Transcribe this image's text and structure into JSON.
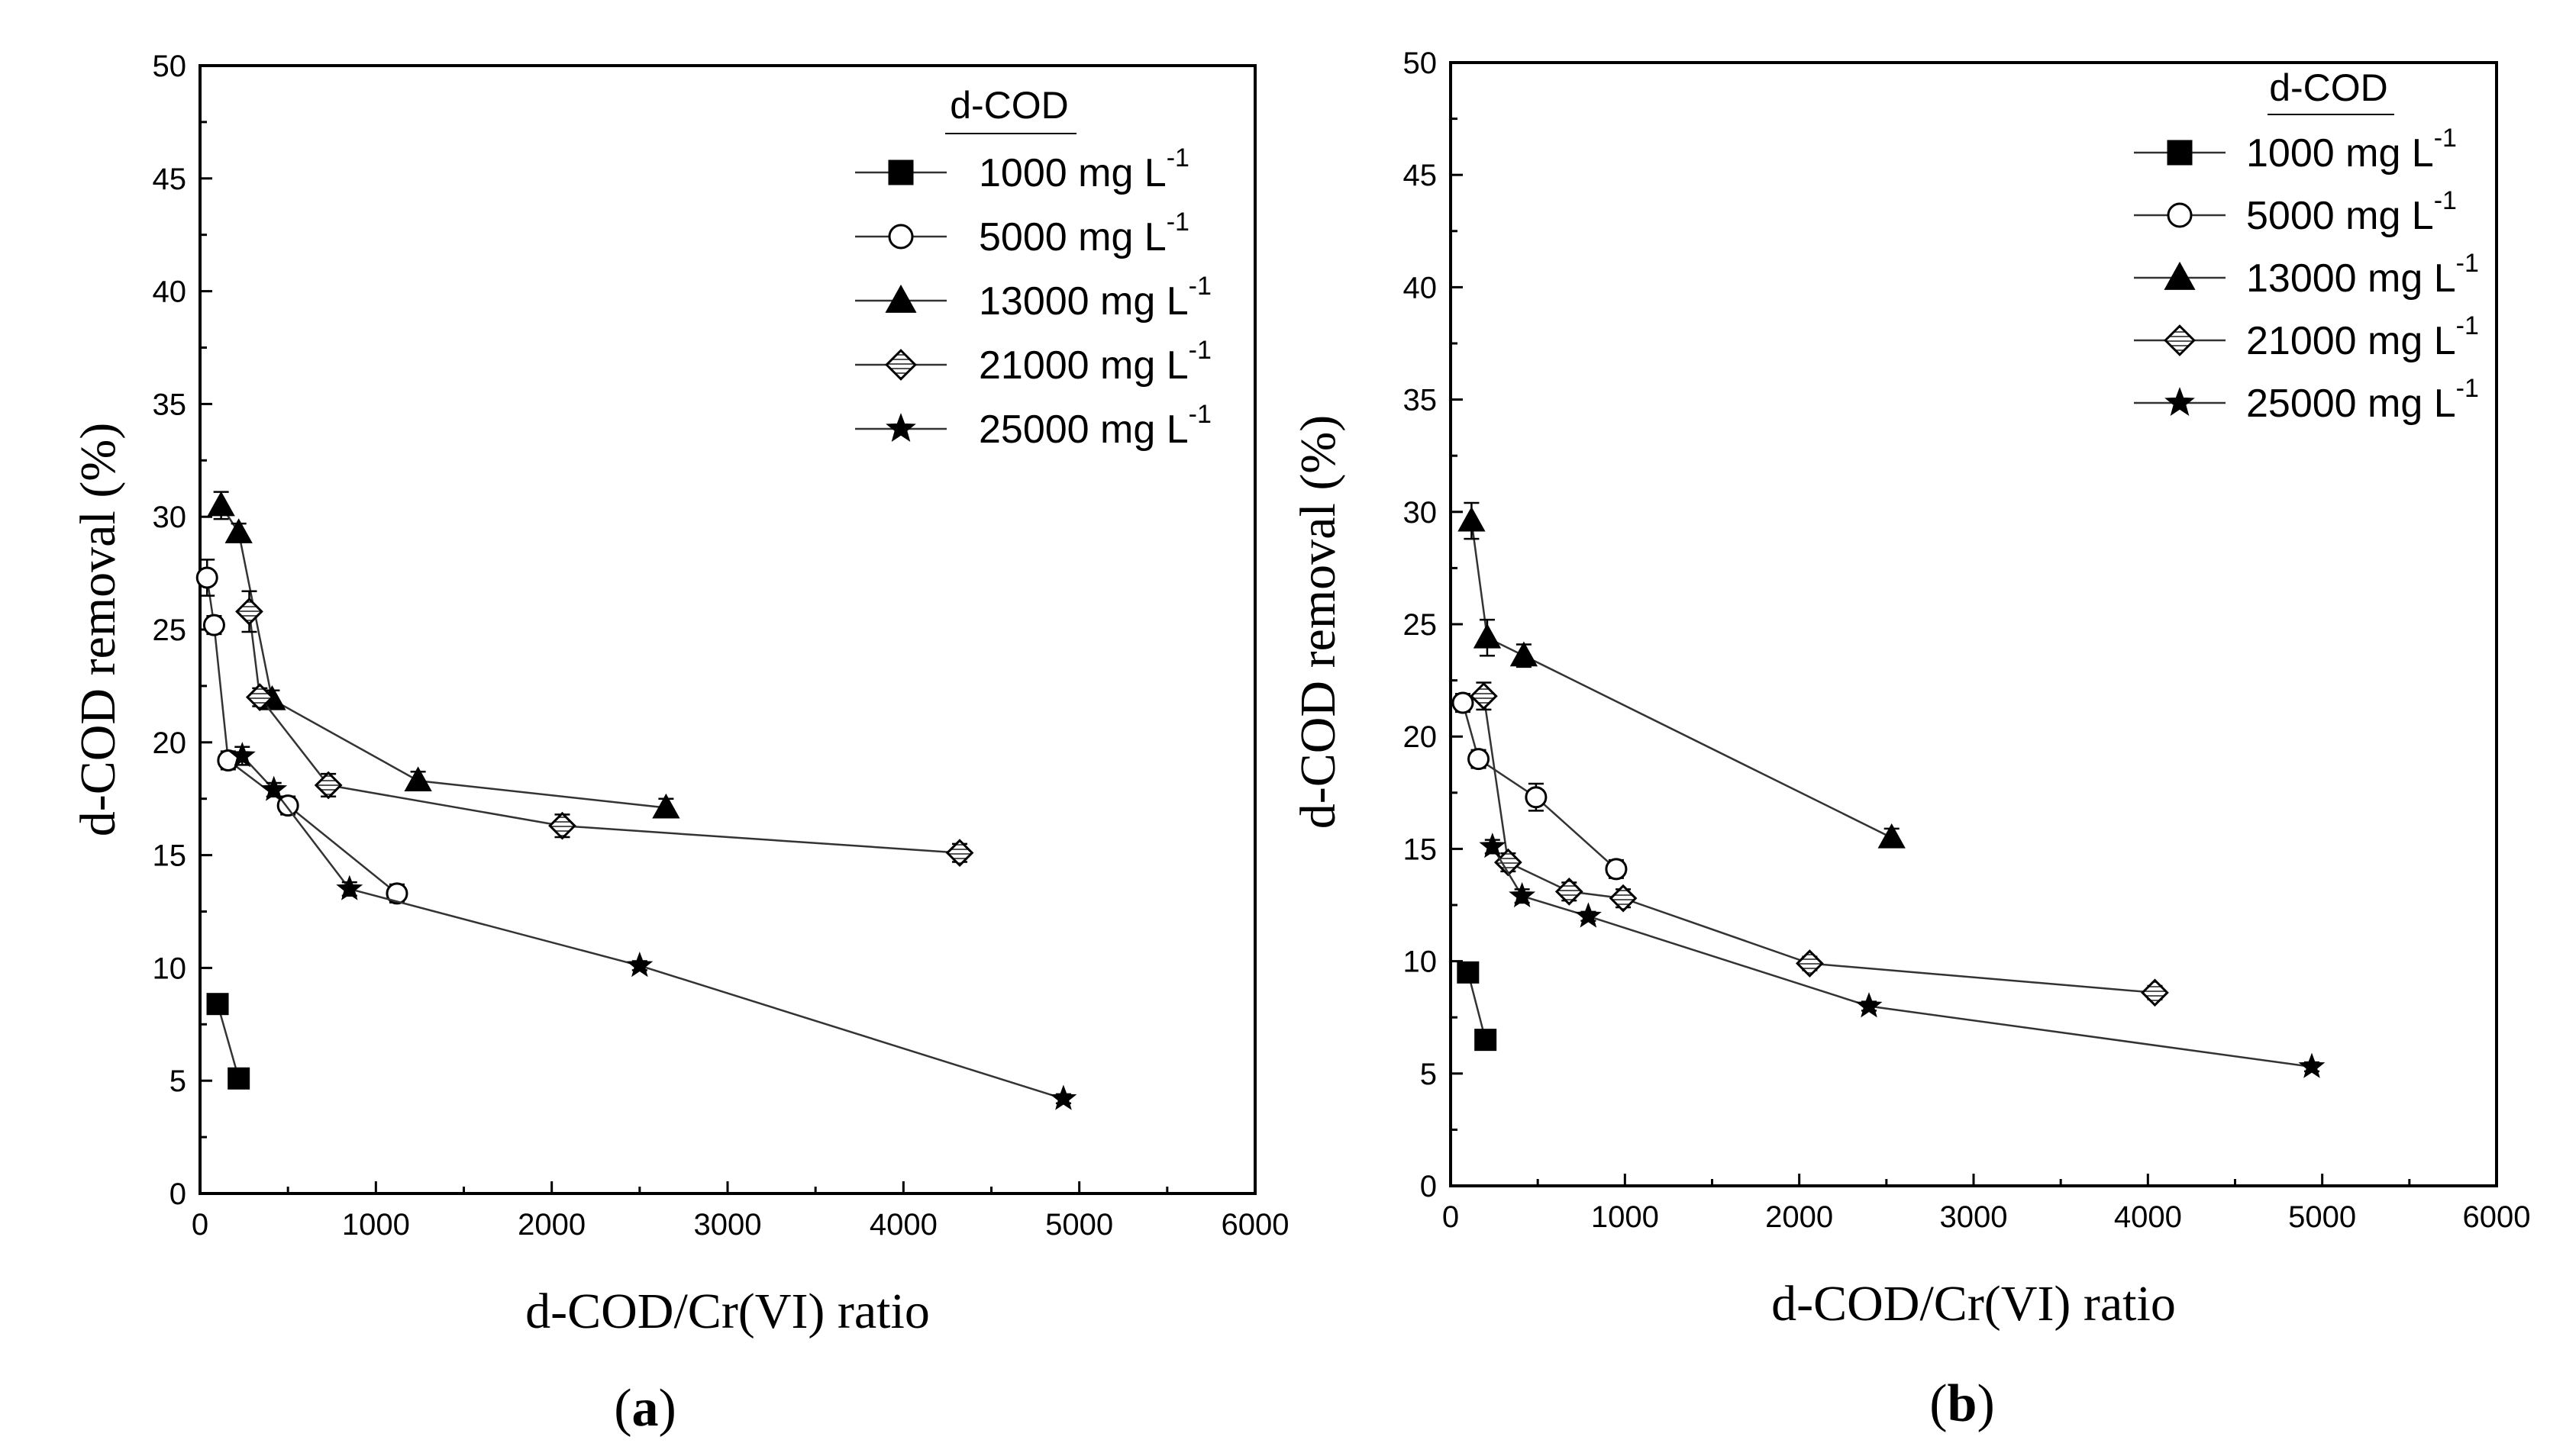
{
  "chart_data": [
    {
      "type": "line",
      "panel_label": "a",
      "xlabel": "d-COD/Cr(VI) ratio",
      "ylabel": "d-COD removal (%)",
      "xlim": [
        0,
        6000
      ],
      "ylim": [
        0,
        50
      ],
      "x_ticks": [
        "0",
        "1000",
        "2000",
        "3000",
        "4000",
        "5000",
        "6000"
      ],
      "y_ticks": [
        "0",
        "5",
        "10",
        "15",
        "20",
        "25",
        "30",
        "35",
        "40",
        "45",
        "50"
      ],
      "grid": false,
      "legend": {
        "title": "d-COD",
        "placement": "top-right",
        "entries": [
          {
            "text": "1000 mg  L",
            "sup": "-1"
          },
          {
            "text": "5000 mg  L",
            "sup": "-1"
          },
          {
            "text": "13000 mg  L",
            "sup": "-1"
          },
          {
            "text": "21000 mg  L",
            "sup": "-1"
          },
          {
            "text": "25000 mg  L",
            "sup": "-1"
          }
        ]
      },
      "series": [
        {
          "marker": "square-filled",
          "x": [
            100,
            220
          ],
          "y": [
            8.4,
            5.1
          ],
          "err": [
            0,
            0
          ]
        },
        {
          "marker": "circle-open",
          "x": [
            40,
            80,
            160,
            500,
            1120
          ],
          "y": [
            27.3,
            25.2,
            19.2,
            17.2,
            13.3
          ],
          "err": [
            0.8,
            0.4,
            0.4,
            0.4,
            0.4
          ]
        },
        {
          "marker": "triangle-filled",
          "x": [
            120,
            220,
            410,
            1240,
            2650
          ],
          "y": [
            30.5,
            29.3,
            21.9,
            18.3,
            17.1
          ],
          "err": [
            0.6,
            0.4,
            0.4,
            0.4,
            0.4
          ]
        },
        {
          "marker": "diamond-open",
          "x": [
            280,
            340,
            730,
            2060,
            4320
          ],
          "y": [
            25.8,
            22.0,
            18.1,
            16.3,
            15.1
          ],
          "err": [
            0.9,
            0.4,
            0.5,
            0.5,
            0.4
          ]
        },
        {
          "marker": "star-filled",
          "x": [
            240,
            420,
            850,
            2500,
            4910
          ],
          "y": [
            19.4,
            17.9,
            13.5,
            10.1,
            4.2
          ],
          "err": [
            0.4,
            0.3,
            0.3,
            0.2,
            0.2
          ]
        }
      ]
    },
    {
      "type": "line",
      "panel_label": "b",
      "xlabel": "d-COD/Cr(VI) ratio",
      "ylabel": "d-COD removal (%)",
      "xlim": [
        0,
        6000
      ],
      "ylim": [
        0,
        50
      ],
      "x_ticks": [
        "0",
        "1000",
        "2000",
        "3000",
        "4000",
        "5000",
        "6000"
      ],
      "y_ticks": [
        "0",
        "5",
        "10",
        "15",
        "20",
        "25",
        "30",
        "35",
        "40",
        "45",
        "50"
      ],
      "grid": false,
      "legend": {
        "title": "d-COD",
        "placement": "top-right",
        "entries": [
          {
            "text": "1000 mg  L",
            "sup": "-1"
          },
          {
            "text": "5000 mg  L",
            "sup": "-1"
          },
          {
            "text": "13000 mg  L",
            "sup": "-1"
          },
          {
            "text": "21000 mg  L",
            "sup": "-1"
          },
          {
            "text": "25000 mg  L",
            "sup": "-1"
          }
        ]
      },
      "series": [
        {
          "marker": "square-filled",
          "x": [
            100,
            200
          ],
          "y": [
            9.5,
            6.5
          ],
          "err": [
            0,
            0
          ]
        },
        {
          "marker": "circle-open",
          "x": [
            70,
            160,
            490,
            950
          ],
          "y": [
            21.5,
            19.0,
            17.3,
            14.1
          ],
          "err": [
            0.4,
            0.4,
            0.6,
            0.4
          ]
        },
        {
          "marker": "triangle-filled",
          "x": [
            120,
            210,
            420,
            2530
          ],
          "y": [
            29.6,
            24.4,
            23.6,
            15.5
          ],
          "err": [
            0.8,
            0.8,
            0.5,
            0.4
          ]
        },
        {
          "marker": "diamond-open",
          "x": [
            190,
            330,
            680,
            990,
            2060,
            4040
          ],
          "y": [
            21.8,
            14.4,
            13.1,
            12.8,
            9.9,
            8.6
          ],
          "err": [
            0.6,
            0.4,
            0.4,
            0.4,
            0.3,
            0.3
          ]
        },
        {
          "marker": "star-filled",
          "x": [
            240,
            410,
            790,
            2400,
            4940
          ],
          "y": [
            15.1,
            12.9,
            12.0,
            8.0,
            5.3
          ],
          "err": [
            0.3,
            0.3,
            0.2,
            0.2,
            0.2
          ]
        }
      ]
    }
  ]
}
